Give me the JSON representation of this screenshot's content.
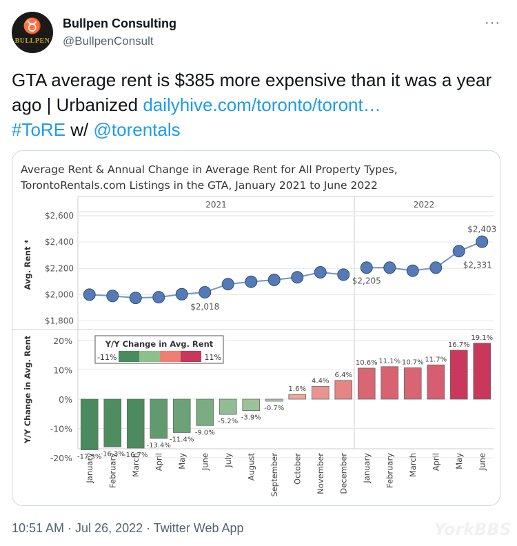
{
  "author": {
    "name": "Bullpen Consulting",
    "handle": "@BullpenConsult",
    "avatar_text": "BULLPEN"
  },
  "more_label": "···",
  "tweet": {
    "text": "GTA average rent is $385 more expensive than it was a year ago | Urbanized ",
    "link": "dailyhive.com/toronto/toront…",
    "hashtag": "#ToRE",
    "middle": " w/ ",
    "mention": "@torentals"
  },
  "footer": "10:51 AM · Jul 26, 2022 · Twitter Web App",
  "watermark": "YorkBBS",
  "chart_data": {
    "type": "line",
    "title": "Average Rent & Annual Change in Average Rent for All Property Types,",
    "subtitle": "TorontoRentals.com Listings in the GTA, January 2021 to June 2022",
    "years": [
      "2021",
      "2022"
    ],
    "categories": [
      "January",
      "February",
      "March",
      "April",
      "May",
      "June",
      "July",
      "August",
      "September",
      "October",
      "November",
      "December",
      "January",
      "February",
      "March",
      "April",
      "May",
      "June"
    ],
    "avg_rent": {
      "ylabel": "Avg. Rent *",
      "yticks": [
        "$2,600",
        "$2,400",
        "$2,200",
        "$2,000",
        "$1,800"
      ],
      "ylim": [
        1750,
        2700
      ],
      "values": [
        2000,
        1990,
        1975,
        1980,
        2003,
        2018,
        2080,
        2098,
        2112,
        2132,
        2170,
        2152,
        2205,
        2205,
        2182,
        2205,
        2331,
        2403
      ],
      "labels": {
        "5": "$2,018",
        "12": "$2,205",
        "16": "$2,331",
        "17": "$2,403"
      }
    },
    "yoy_change": {
      "type": "bar",
      "ylabel": "Y/Y Change in Avg. Rent",
      "yticks": [
        "20%",
        "10%",
        "0%",
        "-10%",
        "-20%"
      ],
      "ylim": [
        -20,
        20
      ],
      "values": [
        -17.3,
        -16.3,
        -16.7,
        -13.4,
        -11.4,
        -9.0,
        -5.2,
        -3.9,
        -0.7,
        1.6,
        4.4,
        6.4,
        10.6,
        11.1,
        10.7,
        11.7,
        16.7,
        19.1
      ],
      "value_labels": [
        "-17.3%",
        "-16.3%",
        "-16.7%",
        "-13.4%",
        "-11.4%",
        "-9.0%",
        "-5.2%",
        "-3.9%",
        "-0.7%",
        "1.6%",
        "4.4%",
        "6.4%",
        "10.6%",
        "11.1%",
        "10.7%",
        "11.7%",
        "16.7%",
        "19.1%"
      ]
    },
    "legend": {
      "title": "Y/Y Change in Avg. Rent",
      "min_label": "-11%",
      "max_label": "11%",
      "colors": [
        "#4b8a5e",
        "#8ec08e",
        "#ee7f72",
        "#c9375a"
      ]
    },
    "colors": {
      "line": "#6f94c4",
      "marker": "#557ab6",
      "marker_stroke": "#2f4f7f"
    }
  }
}
